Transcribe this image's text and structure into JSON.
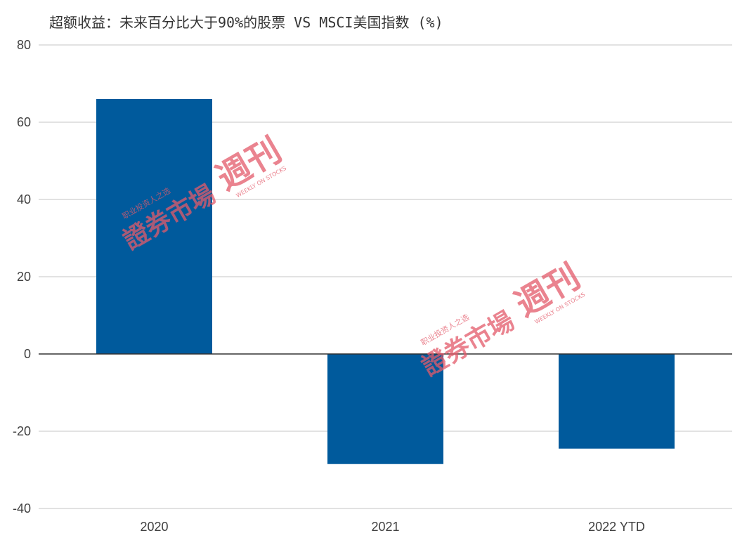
{
  "chart_data": {
    "type": "bar",
    "title": "超额收益：未来百分比大于90%的股票 VS MSCI美国指数 (%)",
    "categories": [
      "2020",
      "2021",
      "2022 YTD"
    ],
    "series": [
      {
        "values": [
          66,
          -28.5,
          -24.5
        ],
        "color": "#005a9c"
      }
    ],
    "ylim": [
      -40,
      80
    ],
    "yticks": [
      80,
      60,
      40,
      20,
      0,
      -20,
      -40
    ],
    "grid": true,
    "xlabel": "",
    "ylabel": ""
  },
  "watermark": {
    "brand": "證券市場",
    "issue": "週刊",
    "subtitle_cn": "职业投资人之选",
    "subtitle_en": "WEEKLY ON STOCKS",
    "color": "#e35a6a"
  }
}
